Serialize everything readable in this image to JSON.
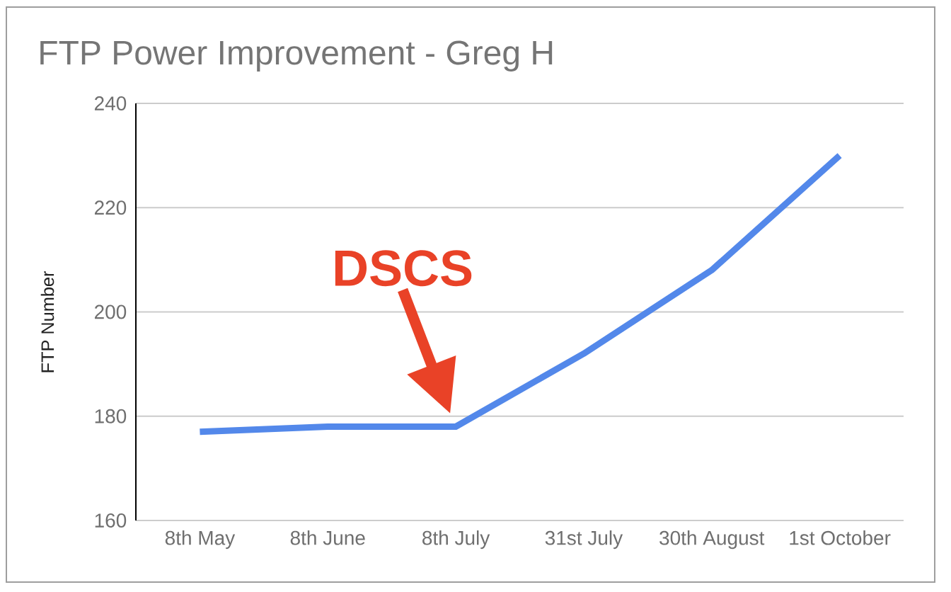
{
  "chart_data": {
    "type": "line",
    "title": "FTP Power Improvement - Greg H",
    "ylabel": "FTP Number",
    "categories": [
      "8th May",
      "8th June",
      "8th July",
      "31st July",
      "30th August",
      "1st October"
    ],
    "series": [
      {
        "color": "#5388ea",
        "values": [
          177,
          178,
          178,
          192,
          208,
          230
        ]
      }
    ],
    "ylim": [
      160,
      240
    ],
    "yticks": [
      160,
      180,
      200,
      220,
      240
    ],
    "grid": "y",
    "line_style": "solid",
    "annotations": [
      {
        "text": "DSCS",
        "x": "8th July",
        "y": 178
      }
    ]
  }
}
